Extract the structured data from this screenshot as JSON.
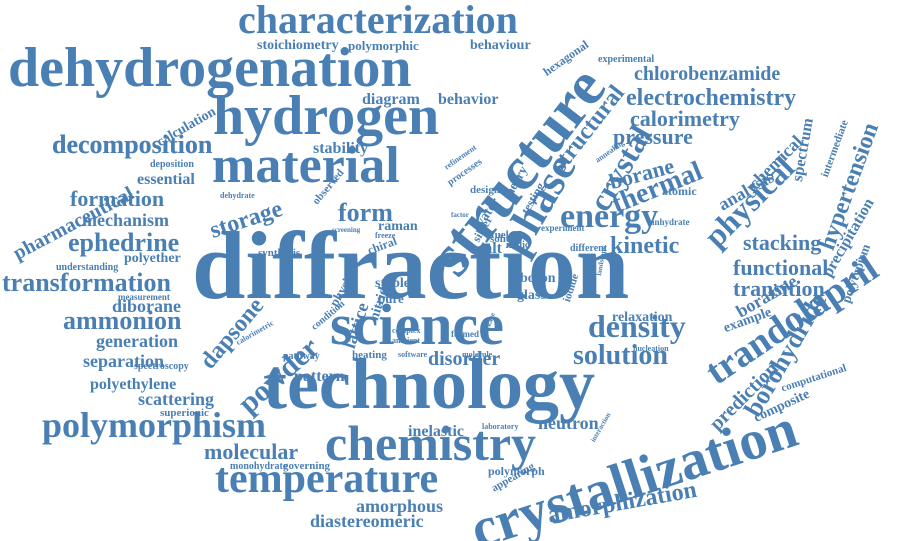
{
  "accent_color": "#4a7fb4",
  "words": [
    "characterization",
    "dehydrogenation",
    "hydrogen",
    "structure",
    "material",
    "diffraction",
    "science",
    "technology",
    "chemistry",
    "crystallization",
    "temperature",
    "polymorphism",
    "trandolapril",
    "density",
    "solution",
    "ammonion",
    "transformation",
    "ephedrine",
    "decomposition",
    "formation",
    "mechanism",
    "pharmaceutical",
    "storage",
    "form",
    "energy",
    "thermal",
    "pressure",
    "calorimetry",
    "electrochemistry",
    "chlorobenzamide",
    "phase",
    "crystal",
    "physical",
    "hypertension",
    "kinetic",
    "stacking",
    "functional",
    "transition",
    "borazine",
    "borohydride",
    "prediction",
    "amorphization",
    "amorphous",
    "diastereomeric",
    "molecular",
    "scattering",
    "separation",
    "generation",
    "polyethylene",
    "dapsone",
    "powder",
    "disorder",
    "neutron",
    "inelastic",
    "pattern",
    "lattice",
    "diborane",
    "polyether",
    "stability",
    "essential",
    "decomposition",
    "calculation",
    "stoichiometry",
    "polymorphic",
    "behaviour",
    "hexagonal",
    "experimental",
    "diagram",
    "behavior",
    "structural",
    "borane",
    "chemical",
    "analysis",
    "spectrum",
    "precipitation",
    "polytypism",
    "intermediate",
    "composite",
    "computational",
    "example",
    "relaxation",
    "superionic",
    "spectroscopy",
    "monohydrate",
    "governing",
    "polymorph",
    "appearing",
    "raman",
    "observed",
    "synthesis",
    "understanding",
    "measurement",
    "nitride",
    "physic",
    "stable",
    "pure",
    "salt",
    "boron",
    "glass",
    "iodide",
    "fuel",
    "solid",
    "silver",
    "water",
    "theory",
    "testing",
    "design",
    "processes",
    "refinement",
    "deposition",
    "dehydrate",
    "annealing",
    "atomic",
    "anhydrate",
    "experiment",
    "different",
    "malic",
    "heating",
    "condition",
    "pathway",
    "calorimetric",
    "software",
    "molecule",
    "formed",
    "laboratory",
    "nucleation",
    "interaction",
    "complex",
    "ambient",
    "landscape",
    "freeze",
    "chiral",
    "screening",
    "factor",
    "package"
  ]
}
